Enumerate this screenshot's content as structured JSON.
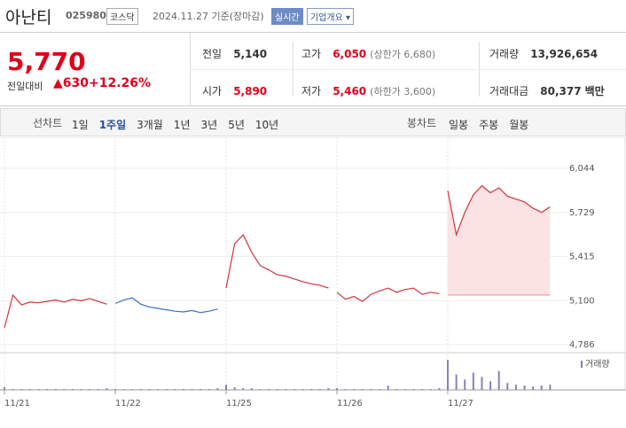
{
  "header": {
    "name": "아난티",
    "code": "025980",
    "market": "코스닥",
    "date": "2024.11.27 기준(장마감)",
    "realtime": "실시간",
    "overview": "기업개요"
  },
  "quote": {
    "price": "5,770",
    "change_label": "전일대비",
    "change": "630",
    "change_pct": "+12.26%",
    "items": [
      {
        "label": "전일",
        "value": "5,140"
      },
      {
        "label": "고가",
        "value": "6,050",
        "note_label": "상한가",
        "note_value": "6,680"
      },
      {
        "label": "거래량",
        "value": "13,926,654"
      },
      {
        "label": "시가",
        "value": "5,890"
      },
      {
        "label": "저가",
        "value": "5,460",
        "note_label": "하한가",
        "note_value": "3,600"
      },
      {
        "label": "거래대금",
        "value": "80,377",
        "unit": "백만"
      }
    ]
  },
  "tabs": {
    "line_label": "선차트",
    "periods": [
      "1일",
      "1주일",
      "3개월",
      "1년",
      "3년",
      "5년",
      "10년"
    ],
    "selected": 1,
    "candle_label": "봉차트",
    "candles": [
      "일봉",
      "주봉",
      "월봉"
    ]
  },
  "chart_data": {
    "type": "line",
    "xlim": [
      0,
      65
    ],
    "xticks": [
      {
        "value": 0,
        "label": "11/21"
      },
      {
        "value": 13,
        "label": "11/22"
      },
      {
        "value": 26,
        "label": "11/25"
      },
      {
        "value": 39,
        "label": "11/26"
      },
      {
        "value": 52,
        "label": "11/27"
      }
    ],
    "ylim": [
      4786,
      6044
    ],
    "yticks": [
      {
        "value": 4786,
        "label": "4,786"
      },
      {
        "value": 5100,
        "label": "5,100"
      },
      {
        "value": 5415,
        "label": "5,415"
      },
      {
        "value": 5729,
        "label": "5,729"
      },
      {
        "value": 6044,
        "label": "6,044"
      }
    ],
    "grid": true,
    "base": 5140,
    "series": [
      {
        "color": "#d0343c",
        "x": [
          0,
          1,
          2,
          3,
          4,
          5,
          6,
          7,
          8,
          9,
          10,
          11,
          12
        ],
        "values": [
          4906,
          5140,
          5070,
          5090,
          5085,
          5095,
          5105,
          5090,
          5110,
          5100,
          5115,
          5095,
          5075
        ]
      },
      {
        "color": "#3c6fc4",
        "x": [
          13,
          14,
          15,
          16,
          17,
          18,
          19,
          20,
          21,
          22,
          23,
          24,
          25
        ],
        "values": [
          5080,
          5105,
          5120,
          5075,
          5055,
          5045,
          5035,
          5025,
          5020,
          5030,
          5015,
          5025,
          5040
        ]
      },
      {
        "color": "#d0343c",
        "x": [
          26,
          27,
          28,
          29,
          30,
          31,
          32,
          33,
          34,
          35,
          36,
          37,
          38
        ],
        "values": [
          5190,
          5505,
          5570,
          5445,
          5350,
          5320,
          5285,
          5275,
          5255,
          5235,
          5220,
          5210,
          5190
        ]
      },
      {
        "color": "#d0343c",
        "x": [
          39,
          40,
          41,
          42,
          43,
          44,
          45,
          46,
          47,
          48,
          49,
          50,
          51
        ],
        "values": [
          5160,
          5110,
          5130,
          5095,
          5145,
          5170,
          5190,
          5160,
          5180,
          5190,
          5145,
          5160,
          5150
        ]
      },
      {
        "color": "#d0343c",
        "fill": "#fbe3e4",
        "x": [
          52,
          53,
          54,
          55,
          56,
          57,
          58,
          59,
          60,
          61,
          62,
          63,
          64
        ],
        "values": [
          5885,
          5570,
          5730,
          5855,
          5920,
          5870,
          5905,
          5845,
          5825,
          5805,
          5760,
          5730,
          5770
        ]
      }
    ],
    "volume": {
      "name": "거래량",
      "color": "#8b7fb8",
      "x": [
        0,
        1,
        2,
        3,
        4,
        5,
        6,
        7,
        8,
        9,
        10,
        11,
        12,
        13,
        14,
        15,
        16,
        17,
        18,
        19,
        20,
        21,
        22,
        23,
        24,
        25,
        26,
        27,
        28,
        29,
        30,
        31,
        32,
        33,
        34,
        35,
        36,
        37,
        38,
        39,
        40,
        41,
        42,
        43,
        44,
        45,
        46,
        47,
        48,
        49,
        50,
        51,
        52,
        53,
        54,
        55,
        56,
        57,
        58,
        59,
        60,
        61,
        62,
        63,
        64
      ],
      "values": [
        3,
        1,
        1,
        1,
        1,
        1,
        1,
        1,
        1,
        1,
        1,
        1,
        2,
        1,
        1,
        1,
        1,
        1,
        1,
        1,
        1,
        1,
        1,
        1,
        1,
        2,
        6,
        3,
        2,
        2,
        1,
        1,
        1,
        1,
        1,
        1,
        1,
        1,
        2,
        2,
        1,
        1,
        1,
        1,
        1,
        5,
        1,
        1,
        1,
        1,
        1,
        2,
        35,
        18,
        12,
        20,
        15,
        10,
        22,
        8,
        6,
        5,
        4,
        5,
        6
      ]
    }
  }
}
